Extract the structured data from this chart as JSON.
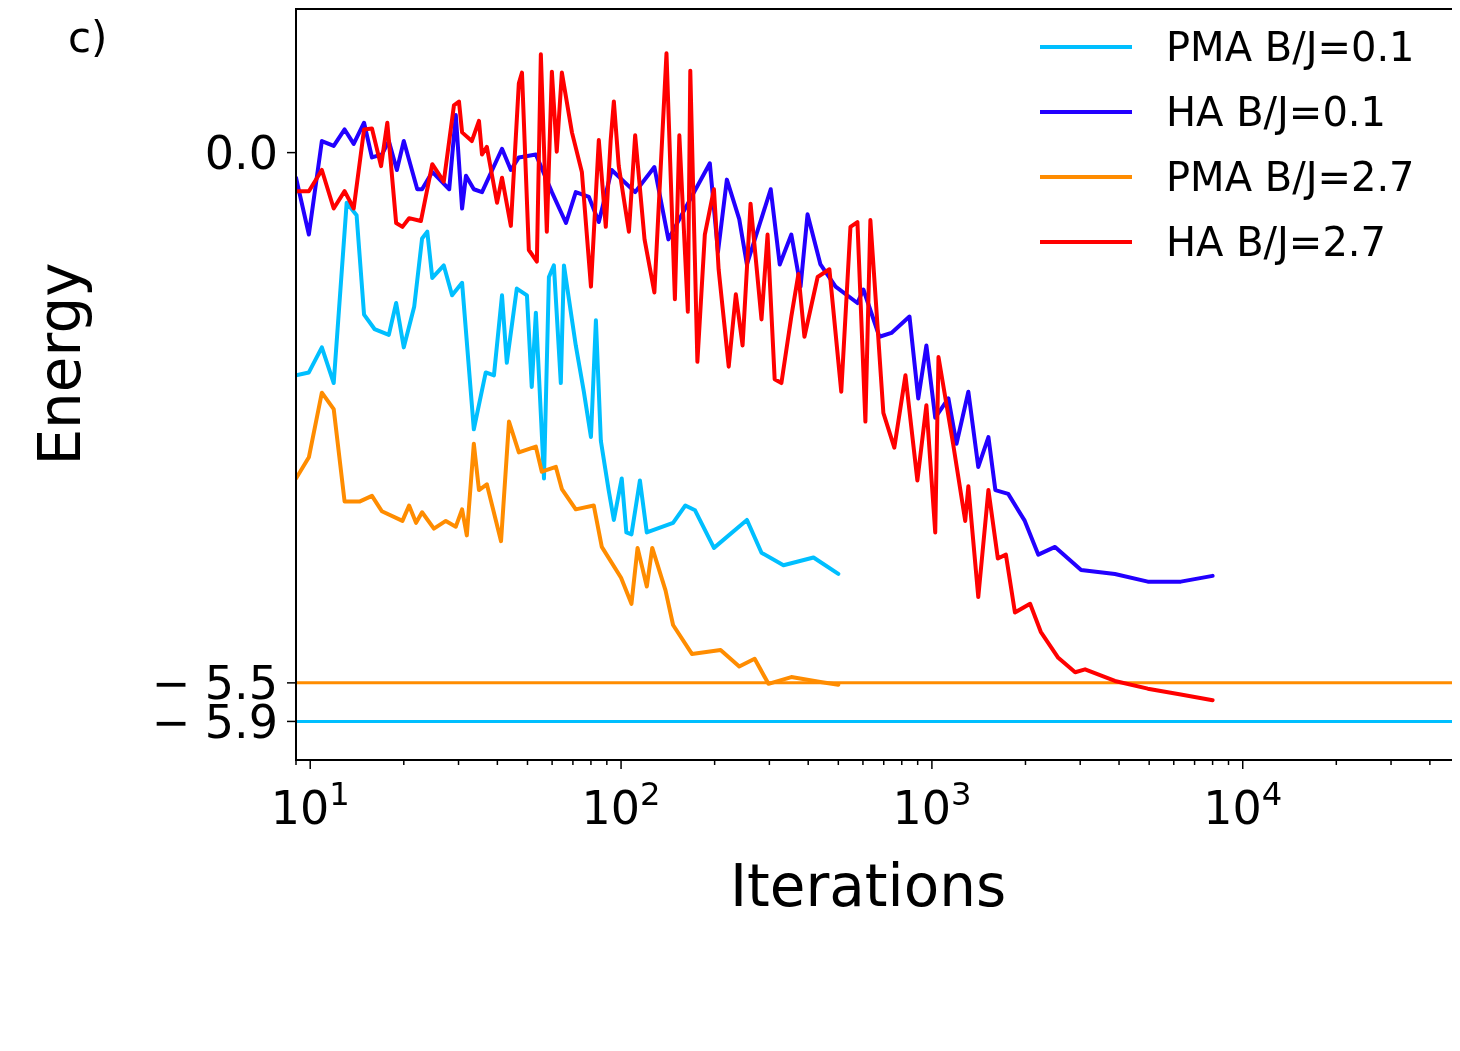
{
  "chart_data": {
    "type": "line",
    "title": "c)",
    "xlabel": "Iterations",
    "ylabel": "Energy",
    "log": "x",
    "xlim": [
      9,
      50000
    ],
    "ylim": [
      -6.3,
      1.5
    ],
    "xticks": [
      {
        "value": 10,
        "label": "10$^{1}$"
      },
      {
        "value": 100,
        "label": "10$^{2}$"
      },
      {
        "value": 1000,
        "label": "10$^{3}$"
      },
      {
        "value": 10000,
        "label": "10$^{4}$"
      },
      {
        "value": 9,
        "label": null
      },
      {
        "value": 20,
        "label": null
      },
      {
        "value": 30,
        "label": null
      },
      {
        "value": 40,
        "label": null
      },
      {
        "value": 50,
        "label": null
      },
      {
        "value": 60,
        "label": null
      },
      {
        "value": 70,
        "label": null
      },
      {
        "value": 80,
        "label": null
      },
      {
        "value": 90,
        "label": null
      },
      {
        "value": 200,
        "label": null
      },
      {
        "value": 300,
        "label": null
      },
      {
        "value": 400,
        "label": null
      },
      {
        "value": 500,
        "label": null
      },
      {
        "value": 600,
        "label": null
      },
      {
        "value": 700,
        "label": null
      },
      {
        "value": 800,
        "label": null
      },
      {
        "value": 900,
        "label": null
      },
      {
        "value": 2000,
        "label": null
      },
      {
        "value": 3000,
        "label": null
      },
      {
        "value": 4000,
        "label": null
      },
      {
        "value": 5000,
        "label": null
      },
      {
        "value": 6000,
        "label": null
      },
      {
        "value": 7000,
        "label": null
      },
      {
        "value": 8000,
        "label": null
      },
      {
        "value": 9000,
        "label": null
      },
      {
        "value": 20000,
        "label": null
      },
      {
        "value": 30000,
        "label": null
      },
      {
        "value": 40000,
        "label": null
      }
    ],
    "yticks": [
      {
        "value": 0,
        "label": "0.0"
      },
      {
        "value": -5.5,
        "label": "− 5.5"
      },
      {
        "value": -5.9,
        "label": "− 5.9"
      }
    ],
    "grid": false,
    "legend": "top right",
    "marker": "none",
    "line_style": "solid",
    "ref_lines": [
      {
        "axis": "y",
        "value": -5.5,
        "label": null,
        "color": "#ff8c00"
      },
      {
        "axis": "y",
        "value": -5.9,
        "label": null,
        "color": "#00bfff"
      }
    ],
    "series": [
      {
        "name": "PMA B/J=0.1",
        "color": "#00bfff",
        "x": [
          9.0,
          9.9,
          10.9,
          11.9,
          13.1,
          14.1,
          14.9,
          16.1,
          17.9,
          18.9,
          20.0,
          21.6,
          22.9,
          23.8,
          24.7,
          26.9,
          28.6,
          30.8,
          33.6,
          36.7,
          39.0,
          41.4,
          42.9,
          46.2,
          49.8,
          51.6,
          53.2,
          56.5,
          58.6,
          60.8,
          64.0,
          65.5,
          71.5,
          75.9,
          80.0,
          83.0,
          86.1,
          91.2,
          94.8,
          100.5,
          104,
          108,
          115,
          121,
          147,
          161,
          173,
          199,
          254,
          283,
          333,
          416,
          500
        ],
        "values": [
          -2.31,
          -2.28,
          -2.02,
          -2.39,
          -0.52,
          -0.65,
          -1.68,
          -1.83,
          -1.89,
          -1.56,
          -2.02,
          -1.6,
          -0.89,
          -0.82,
          -1.3,
          -1.17,
          -1.48,
          -1.35,
          -2.87,
          -2.28,
          -2.31,
          -1.48,
          -2.18,
          -1.41,
          -1.48,
          -2.43,
          -1.66,
          -3.38,
          -1.29,
          -1.17,
          -2.39,
          -1.17,
          -2.0,
          -2.48,
          -2.95,
          -1.74,
          -2.99,
          -3.5,
          -3.81,
          -3.38,
          -3.94,
          -3.96,
          -3.4,
          -3.94,
          -3.84,
          -3.66,
          -3.71,
          -4.1,
          -3.81,
          -4.15,
          -4.28,
          -4.2,
          -4.37
        ]
      },
      {
        "name": "HA B/J=0.1",
        "color": "#2200ff",
        "x": [
          9.0,
          9.9,
          10.9,
          11.9,
          12.9,
          13.8,
          14.9,
          15.8,
          17.0,
          17.9,
          19.0,
          20.0,
          22.1,
          22.9,
          24.7,
          28.0,
          29.4,
          30.8,
          31.7,
          33.6,
          35.7,
          41.4,
          44.2,
          46.9,
          53.2,
          59.9,
          66.5,
          71.5,
          78.8,
          84.8,
          93.3,
          111,
          128,
          142,
          193,
          205,
          219,
          240,
          254,
          303,
          324,
          353,
          378,
          398,
          438,
          490,
          576,
          602,
          678,
          741,
          847,
          904,
          960,
          1025,
          1130,
          1200,
          1310,
          1410,
          1520,
          1600,
          1760,
          1990,
          2200,
          2490,
          3020,
          3880,
          4950,
          6320,
          8000
        ],
        "values": [
          -0.26,
          -0.85,
          0.12,
          0.07,
          0.24,
          0.09,
          0.31,
          -0.05,
          -0.02,
          0.12,
          -0.18,
          0.12,
          -0.38,
          -0.38,
          -0.2,
          -0.38,
          0.39,
          -0.58,
          -0.24,
          -0.38,
          -0.41,
          0.04,
          -0.18,
          -0.05,
          -0.02,
          -0.41,
          -0.73,
          -0.41,
          -0.46,
          -0.72,
          -0.18,
          -0.41,
          -0.15,
          -0.9,
          -0.11,
          -1.03,
          -0.28,
          -0.69,
          -1.16,
          -0.38,
          -1.16,
          -0.85,
          -1.39,
          -0.64,
          -1.16,
          -1.39,
          -1.56,
          -1.42,
          -1.91,
          -1.87,
          -1.7,
          -2.55,
          -2.0,
          -2.75,
          -2.55,
          -3.02,
          -2.48,
          -3.26,
          -2.95,
          -3.5,
          -3.54,
          -3.82,
          -4.17,
          -4.09,
          -4.33,
          -4.37,
          -4.45,
          -4.45,
          -4.39
        ]
      },
      {
        "name": "PMA B/J=2.7",
        "color": "#ff8c00",
        "x": [
          9.0,
          9.9,
          10.9,
          11.9,
          12.9,
          14.4,
          15.8,
          17.0,
          19.8,
          20.8,
          21.9,
          22.9,
          25.0,
          27.3,
          29.4,
          30.8,
          31.9,
          33.6,
          34.9,
          37.0,
          41.1,
          43.6,
          46.9,
          53.2,
          55.6,
          61.7,
          64.5,
          71.5,
          81.7,
          86.7,
          100,
          108,
          113,
          121,
          126,
          139,
          147,
          169,
          209,
          240,
          269,
          298,
          353,
          438,
          500
        ],
        "values": [
          -3.38,
          -3.16,
          -2.49,
          -2.66,
          -3.62,
          -3.62,
          -3.56,
          -3.72,
          -3.82,
          -3.66,
          -3.84,
          -3.73,
          -3.9,
          -3.82,
          -3.88,
          -3.7,
          -3.97,
          -3.02,
          -3.5,
          -3.44,
          -4.03,
          -2.79,
          -3.11,
          -3.05,
          -3.31,
          -3.26,
          -3.49,
          -3.7,
          -3.66,
          -4.09,
          -4.41,
          -4.68,
          -4.1,
          -4.5,
          -4.1,
          -4.54,
          -4.9,
          -5.2,
          -5.16,
          -5.33,
          -5.25,
          -5.51,
          -5.44,
          -5.49,
          -5.52
        ]
      },
      {
        "name": "HA B/J=2.7",
        "color": "#ff0000",
        "x": [
          9.0,
          9.9,
          10.9,
          11.9,
          12.9,
          13.8,
          14.9,
          15.8,
          16.9,
          17.7,
          18.9,
          19.8,
          20.8,
          22.7,
          24.7,
          26.9,
          29.0,
          30.1,
          30.8,
          33.1,
          34.9,
          35.7,
          37.0,
          39.9,
          41.4,
          44.2,
          46.9,
          48.0,
          50.5,
          53.6,
          55.2,
          57.7,
          59.9,
          62.1,
          64.5,
          69.5,
          74.8,
          80.0,
          84.8,
          89.3,
          92.6,
          94.8,
          98.3,
          106,
          111,
          119,
          128,
          140,
          149,
          154,
          164,
          167,
          176,
          186,
          199,
          206,
          222,
          234,
          246,
          261,
          283,
          296,
          312,
          328,
          353,
          372,
          389,
          429,
          468,
          511,
          547,
          576,
          611,
          634,
          698,
          757,
          822,
          898,
          960,
          1025,
          1050,
          1170,
          1280,
          1310,
          1410,
          1520,
          1630,
          1730,
          1850,
          2070,
          2240,
          2550,
          2890,
          3110,
          3880,
          4950,
          6320,
          8000
        ],
        "values": [
          -0.4,
          -0.4,
          -0.18,
          -0.58,
          -0.4,
          -0.58,
          0.24,
          0.25,
          -0.14,
          0.31,
          -0.73,
          -0.77,
          -0.68,
          -0.71,
          -0.12,
          -0.3,
          0.49,
          0.53,
          0.21,
          0.12,
          0.33,
          -0.02,
          0.06,
          -0.52,
          -0.26,
          -0.76,
          0.72,
          0.83,
          -1.01,
          -1.13,
          1.02,
          -0.82,
          0.84,
          0.01,
          0.83,
          0.21,
          -0.2,
          -1.39,
          0.13,
          -0.77,
          0.13,
          0.53,
          -0.14,
          -0.82,
          0.18,
          -0.9,
          -1.45,
          1.03,
          -1.52,
          0.18,
          -1.65,
          0.85,
          -2.17,
          -0.85,
          -0.38,
          -1.21,
          -2.22,
          -1.47,
          -2.0,
          -0.53,
          -1.73,
          -0.85,
          -2.35,
          -2.39,
          -1.7,
          -1.26,
          -1.91,
          -1.29,
          -1.21,
          -2.48,
          -0.77,
          -0.72,
          -2.79,
          -0.7,
          -2.7,
          -3.06,
          -2.31,
          -3.4,
          -2.62,
          -3.94,
          -2.12,
          -3.02,
          -3.82,
          -3.46,
          -4.61,
          -3.5,
          -4.21,
          -4.17,
          -4.77,
          -4.68,
          -4.97,
          -5.24,
          -5.39,
          -5.36,
          -5.48,
          -5.56,
          -5.62,
          -5.68
        ]
      }
    ]
  }
}
